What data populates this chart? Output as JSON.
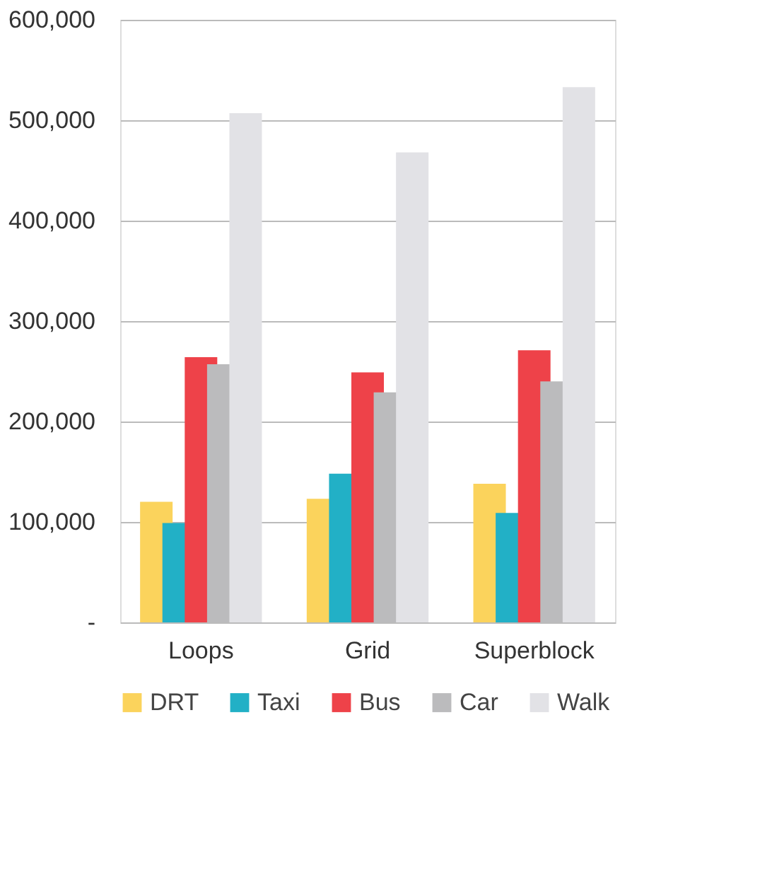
{
  "chart_data": {
    "type": "bar",
    "categories": [
      "Loops",
      "Grid",
      "Superblock"
    ],
    "series": [
      {
        "name": "DRT",
        "color": "#fbd35c",
        "values": [
          120000,
          123000,
          138000
        ]
      },
      {
        "name": "Taxi",
        "color": "#22b0c6",
        "values": [
          99000,
          148000,
          109000
        ]
      },
      {
        "name": "Bus",
        "color": "#ee4249",
        "values": [
          264000,
          249000,
          271000
        ]
      },
      {
        "name": "Car",
        "color": "#bbbbbd",
        "values": [
          257000,
          229000,
          240000
        ]
      },
      {
        "name": "Walk",
        "color": "#e2e2e6",
        "values": [
          507000,
          468000,
          533000
        ]
      }
    ],
    "ylim": [
      0,
      600000
    ],
    "yticks": [
      {
        "value": 0,
        "label": "-"
      },
      {
        "value": 100000,
        "label": "100,000"
      },
      {
        "value": 200000,
        "label": "200,000"
      },
      {
        "value": 300000,
        "label": "300,000"
      },
      {
        "value": 400000,
        "label": "400,000"
      },
      {
        "value": 500000,
        "label": "500,000"
      },
      {
        "value": 600000,
        "label": "600,000"
      }
    ],
    "grid": "y",
    "legend": "bottom"
  }
}
